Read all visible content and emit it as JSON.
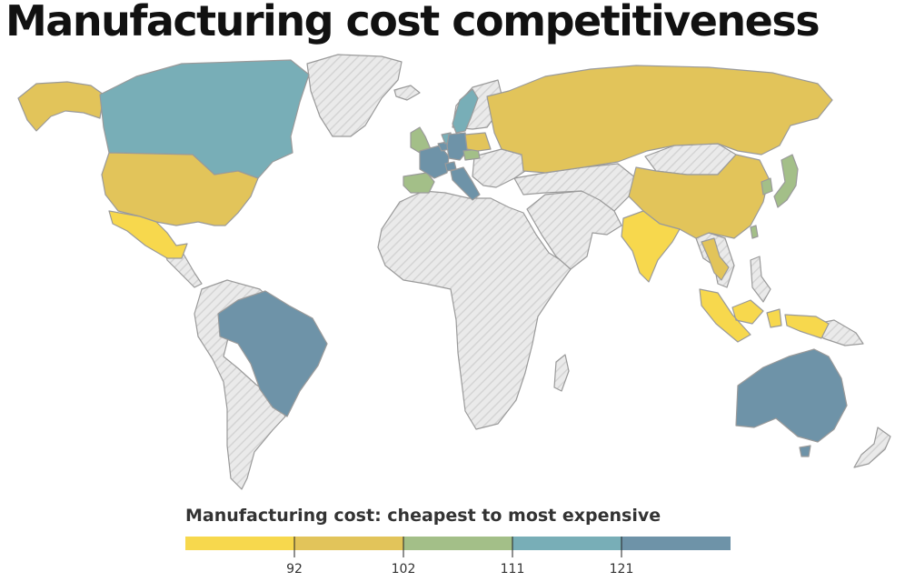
{
  "title": "Manufacturing cost competitiveness",
  "legend": {
    "title": "Manufacturing cost: cheapest to most expensive",
    "ticks": [
      "92",
      "102",
      "111",
      "121"
    ],
    "bins": [
      {
        "color": "#f7d84d"
      },
      {
        "color": "#e2c45a"
      },
      {
        "color": "#a3bf88"
      },
      {
        "color": "#78aeb7"
      },
      {
        "color": "#6e93a8"
      }
    ]
  },
  "map": {
    "nodata_fill": "#eaeaea",
    "nodata_hatch": "#d4d4d4",
    "border_color": "#9a9a9a",
    "regions": [
      {
        "name": "canada",
        "bin": 3
      },
      {
        "name": "united-states",
        "bin": 1
      },
      {
        "name": "alaska",
        "bin": 1
      },
      {
        "name": "mexico",
        "bin": 0
      },
      {
        "name": "brazil",
        "bin": 4
      },
      {
        "name": "united-kingdom",
        "bin": 2
      },
      {
        "name": "spain",
        "bin": 2
      },
      {
        "name": "france",
        "bin": 4
      },
      {
        "name": "germany",
        "bin": 4
      },
      {
        "name": "italy",
        "bin": 4
      },
      {
        "name": "netherlands",
        "bin": 3
      },
      {
        "name": "belgium",
        "bin": 4
      },
      {
        "name": "switzerland",
        "bin": 4
      },
      {
        "name": "sweden",
        "bin": 3
      },
      {
        "name": "poland",
        "bin": 1
      },
      {
        "name": "czech-republic",
        "bin": 2
      },
      {
        "name": "russia",
        "bin": 1
      },
      {
        "name": "china",
        "bin": 1
      },
      {
        "name": "india",
        "bin": 0
      },
      {
        "name": "thailand",
        "bin": 1
      },
      {
        "name": "indonesia",
        "bin": 0
      },
      {
        "name": "south-korea",
        "bin": 2
      },
      {
        "name": "japan",
        "bin": 2
      },
      {
        "name": "taiwan",
        "bin": 2
      },
      {
        "name": "australia",
        "bin": 4
      }
    ]
  }
}
